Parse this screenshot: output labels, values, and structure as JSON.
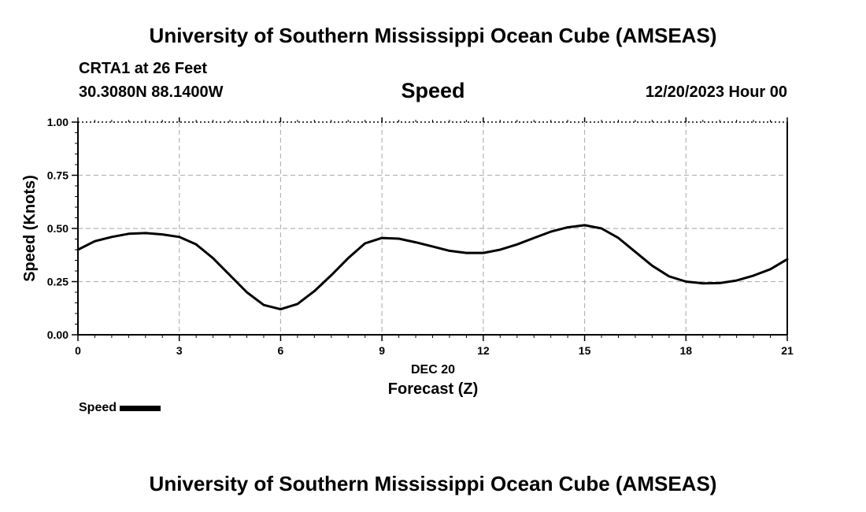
{
  "header": {
    "title": "University of Southern Mississippi Ocean Cube (AMSEAS)",
    "station": "CRTA1 at 26 Feet",
    "coords": "30.3080N  88.1400W",
    "variable": "Speed",
    "datetime": "12/20/2023 Hour 00"
  },
  "footer": {
    "title": "University of Southern Mississippi Ocean Cube (AMSEAS)"
  },
  "chart_data": {
    "type": "line",
    "title": "Speed",
    "xlabel": "Forecast (Z)",
    "xlabel_date": "DEC 20",
    "ylabel": "Speed (Knots)",
    "xlim": [
      0,
      21
    ],
    "ylim": [
      0,
      1.0
    ],
    "xticks": [
      0,
      3,
      6,
      9,
      12,
      15,
      18,
      21
    ],
    "xtick_labels": [
      "0",
      "3",
      "6",
      "9",
      "12",
      "15",
      "18",
      "21"
    ],
    "yticks": [
      0,
      0.25,
      0.5,
      0.75,
      1.0
    ],
    "ytick_labels": [
      "0.00",
      "0.25",
      "0.50",
      "0.75",
      "1.00"
    ],
    "grid": true,
    "series": [
      {
        "name": "Speed",
        "color": "#000000",
        "x": [
          0,
          0.5,
          1,
          1.5,
          2,
          2.5,
          3,
          3.5,
          4,
          4.5,
          5,
          5.5,
          6,
          6.5,
          7,
          7.5,
          8,
          8.5,
          9,
          9.5,
          10,
          10.5,
          11,
          11.5,
          12,
          12.5,
          13,
          13.5,
          14,
          14.5,
          15,
          15.5,
          16,
          16.5,
          17,
          17.5,
          18,
          18.5,
          19,
          19.5,
          20,
          20.5,
          21
        ],
        "values": [
          0.4,
          0.44,
          0.46,
          0.475,
          0.478,
          0.472,
          0.46,
          0.425,
          0.36,
          0.28,
          0.2,
          0.14,
          0.12,
          0.145,
          0.205,
          0.28,
          0.36,
          0.43,
          0.455,
          0.452,
          0.435,
          0.415,
          0.395,
          0.385,
          0.385,
          0.4,
          0.425,
          0.455,
          0.485,
          0.505,
          0.515,
          0.5,
          0.455,
          0.39,
          0.325,
          0.275,
          0.25,
          0.242,
          0.243,
          0.255,
          0.278,
          0.308,
          0.355
        ]
      }
    ]
  }
}
